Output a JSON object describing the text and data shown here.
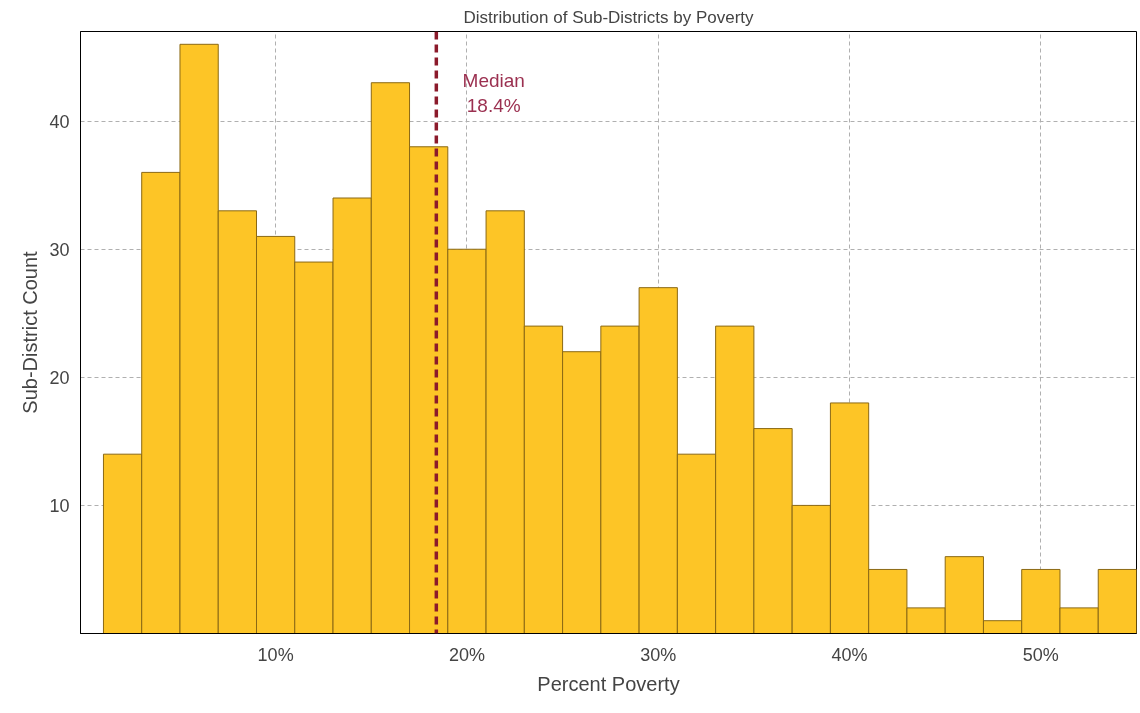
{
  "chart_data": {
    "type": "histogram",
    "title": "Distribution of Sub-Districts by Poverty",
    "xlabel": "Percent Poverty",
    "ylabel": "Sub-District Count",
    "bins": [
      1,
      3,
      5,
      7,
      9,
      11,
      13,
      15,
      17,
      19,
      21,
      23,
      25,
      27,
      29,
      31,
      33,
      35,
      37,
      39,
      41,
      43,
      45,
      47,
      49,
      51,
      53,
      55
    ],
    "values": [
      14,
      36,
      46,
      33,
      31,
      29,
      34,
      43,
      38,
      30,
      33,
      24,
      22,
      24,
      27,
      14,
      24,
      16,
      10,
      18,
      5,
      2,
      6,
      1,
      5,
      2,
      5
    ],
    "color": "#fdc526",
    "xlim": [
      -0.2,
      55
    ],
    "ylim": [
      0,
      47
    ],
    "xticks": [
      {
        "value": 10,
        "label": "10%"
      },
      {
        "value": 20,
        "label": "20%"
      },
      {
        "value": 30,
        "label": "30%"
      },
      {
        "value": 40,
        "label": "40%"
      },
      {
        "value": 50,
        "label": "50%"
      }
    ],
    "yticks": [
      10,
      20,
      30,
      40
    ],
    "grid": true,
    "ref_lines": [
      {
        "axis": "x",
        "value": 18.4,
        "label": "Median\n18.4%",
        "color": "#8b1a2b",
        "line_style": "dashed"
      }
    ]
  }
}
